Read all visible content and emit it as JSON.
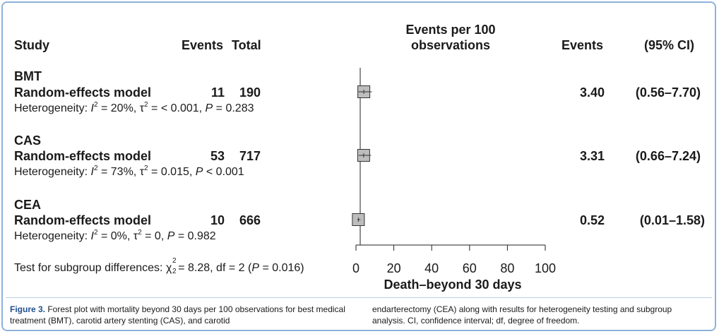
{
  "headers": {
    "study": "Study",
    "events": "Events",
    "total": "Total",
    "plot_line1": "Events per 100",
    "plot_line2": "observations",
    "events_right": "Events",
    "ci": "(95% CI)"
  },
  "groups": [
    {
      "name": "BMT",
      "model_label": "Random-effects model",
      "events": "11",
      "total": "190",
      "het_prefix": "Heterogeneity: ",
      "het_i2": "= 20%, ",
      "het_tau2": "= < 0.001, ",
      "het_p": "= 0.283",
      "estimate": "3.40",
      "ci": "(0.56–7.70)"
    },
    {
      "name": "CAS",
      "model_label": "Random-effects model",
      "events": "53",
      "total": "717",
      "het_prefix": "Heterogeneity: ",
      "het_i2": "= 73%, ",
      "het_tau2": "= 0.015, ",
      "het_p": "< 0.001",
      "estimate": "3.31",
      "ci": "(0.66–7.24)"
    },
    {
      "name": "CEA",
      "model_label": "Random-effects model",
      "events": "10",
      "total": "666",
      "het_prefix": "Heterogeneity: ",
      "het_i2": "= 0%, ",
      "het_tau2": "= 0, ",
      "het_p": "= 0.982",
      "estimate": "0.52",
      "ci": "(0.01–1.58)"
    }
  ],
  "subgroup_test": {
    "prefix": "Test for subgroup differences: ",
    "value": "= 8.28, df = 2 (",
    "p": "= 0.016)"
  },
  "chart_data": {
    "type": "forest",
    "xlabel": "Death–beyond 30 days",
    "xlim": [
      0,
      100
    ],
    "xticks": [
      "0",
      "20",
      "40",
      "60",
      "80",
      "100"
    ],
    "xtick_values": [
      0,
      20,
      40,
      60,
      80,
      100
    ],
    "reference_line": 0,
    "series": [
      {
        "name": "BMT",
        "estimate": 3.4,
        "ci_low": 0.56,
        "ci_high": 7.7
      },
      {
        "name": "CAS",
        "estimate": 3.31,
        "ci_low": 0.66,
        "ci_high": 7.24
      },
      {
        "name": "CEA",
        "estimate": 0.52,
        "ci_low": 0.01,
        "ci_high": 1.58
      }
    ]
  },
  "caption": {
    "label": "Figure 3.",
    "col1": " Forest plot with mortality beyond 30 days per 100 observations for best medical treatment (BMT), carotid artery stenting (CAS), and carotid",
    "col2": "endarterectomy (CEA) along with results for heterogeneity testing and subgroup analysis. CI, confidence interval; df, degree of freedom."
  },
  "colors": {
    "frame": "#8db2d9",
    "box_fill": "#bdbdbd",
    "caption_label": "#1f4e8c"
  }
}
